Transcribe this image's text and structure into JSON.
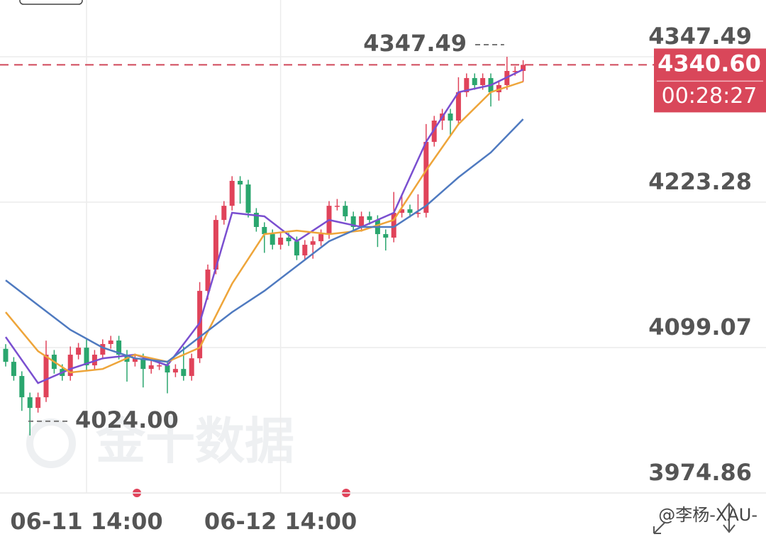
{
  "chart_data": {
    "type": "candlestick",
    "categories": [
      null,
      null,
      null,
      null,
      null,
      null,
      null,
      null,
      null,
      null,
      "06-11 14:00",
      null,
      null,
      null,
      null,
      null,
      null,
      null,
      null,
      null,
      null,
      null,
      null,
      null,
      null,
      null,
      null,
      null,
      null,
      null,
      null,
      null,
      null,
      null,
      "06-12 14:00",
      null,
      null,
      null,
      null,
      null,
      null,
      null,
      null,
      null,
      null,
      null,
      null,
      null,
      null,
      null,
      null,
      null,
      null,
      null,
      null,
      null,
      null,
      null,
      null,
      null,
      null,
      null,
      null,
      null,
      null
    ],
    "open": [
      4098.0,
      4086.9,
      4074.8,
      4056.6,
      4047.5,
      4056.6,
      4093.0,
      4080.8,
      4074.8,
      4093.0,
      4099.0,
      4083.9,
      4093.0,
      4102.1,
      4105.1,
      4093.0,
      4086.9,
      4089.9,
      4080.8,
      4083.9,
      4083.9,
      4077.8,
      4080.8,
      4074.8,
      4089.9,
      4147.5,
      4165.7,
      4208.1,
      4220.2,
      4241.5,
      4238.4,
      4214.2,
      4202.1,
      4196.0,
      4186.9,
      4193.0,
      4189.9,
      4177.8,
      4186.9,
      4189.9,
      4196.0,
      4220.2,
      4220.2,
      4211.2,
      4202.1,
      4211.2,
      4208.1,
      4196.0,
      4193.0,
      4214.2,
      4217.2,
      4214.2,
      4214.2,
      4274.8,
      4293.0,
      4299.0,
      4293.0,
      4317.2,
      4329.3,
      4323.3,
      4329.3,
      4317.2,
      4323.3,
      4335.4,
      4335.4
    ],
    "high": [
      4102.0,
      4090.9,
      4078.8,
      4060.6,
      4060.6,
      4105.0,
      4097.0,
      4084.8,
      4100.0,
      4103.0,
      4106.0,
      4097.0,
      4106.1,
      4109.1,
      4109.1,
      4097.0,
      4093.9,
      4093.9,
      4087.9,
      4087.9,
      4087.9,
      4084.8,
      4100.0,
      4093.9,
      4155.0,
      4170.0,
      4212.1,
      4224.2,
      4245.5,
      4245.5,
      4242.4,
      4218.2,
      4206.1,
      4200.0,
      4197.0,
      4197.0,
      4193.9,
      4190.9,
      4193.9,
      4200.0,
      4224.2,
      4226.0,
      4224.2,
      4215.2,
      4215.2,
      4215.2,
      4212.1,
      4200.0,
      4232.0,
      4230.0,
      4221.2,
      4230.0,
      4290.0,
      4297.0,
      4303.0,
      4303.0,
      4330.0,
      4333.3,
      4333.3,
      4333.3,
      4333.3,
      4327.3,
      4347.49,
      4339.4,
      4344.6
    ],
    "low": [
      4082.9,
      4070.8,
      4045.0,
      4024.0,
      4043.5,
      4052.6,
      4076.8,
      4070.8,
      4070.8,
      4089.0,
      4079.9,
      4079.9,
      4089.0,
      4098.1,
      4089.0,
      4070.0,
      4082.9,
      4065.0,
      4076.8,
      4079.9,
      4060.0,
      4073.8,
      4070.8,
      4070.8,
      4085.9,
      4140.0,
      4161.7,
      4204.1,
      4216.2,
      4222.0,
      4210.2,
      4198.1,
      4180.0,
      4182.9,
      4182.9,
      4185.9,
      4173.8,
      4173.8,
      4175.0,
      4185.9,
      4192.0,
      4216.2,
      4207.2,
      4198.1,
      4198.1,
      4204.1,
      4185.0,
      4182.0,
      4189.0,
      4210.2,
      4210.2,
      4210.2,
      4210.2,
      4270.8,
      4285.0,
      4280.0,
      4289.0,
      4313.2,
      4319.3,
      4319.3,
      4305.0,
      4310.0,
      4319.3,
      4331.4,
      4326.0
    ],
    "close": [
      4086.9,
      4074.8,
      4056.6,
      4047.5,
      4056.6,
      4093.0,
      4080.8,
      4074.8,
      4093.0,
      4099.0,
      4083.9,
      4093.0,
      4102.1,
      4105.1,
      4093.0,
      4086.9,
      4089.9,
      4080.8,
      4083.9,
      4083.9,
      4077.8,
      4080.8,
      4074.8,
      4089.9,
      4147.5,
      4165.7,
      4208.1,
      4220.2,
      4241.5,
      4238.4,
      4214.2,
      4202.1,
      4196.0,
      4186.9,
      4193.0,
      4189.9,
      4177.8,
      4186.9,
      4189.9,
      4196.0,
      4220.2,
      4220.2,
      4211.2,
      4202.1,
      4211.2,
      4208.1,
      4196.0,
      4193.0,
      4214.2,
      4217.2,
      4214.2,
      4214.2,
      4274.8,
      4293.0,
      4299.0,
      4293.0,
      4317.2,
      4329.3,
      4323.3,
      4329.3,
      4317.2,
      4323.3,
      4335.4,
      4335.4,
      4340.6
    ],
    "up_color": "#e0435a",
    "down_color": "#2aa66e",
    "lines": [
      {
        "color": "#7a4fd0",
        "x": [
          0,
          4,
          8,
          12,
          16,
          20,
          24,
          28,
          32,
          36,
          40,
          44,
          48,
          52,
          56,
          60,
          64
        ],
        "values": [
          4108.1,
          4068.7,
          4080.8,
          4089.9,
          4093.0,
          4083.9,
          4120.2,
          4214.2,
          4211.2,
          4189.9,
          4208.1,
          4202.1,
          4214.2,
          4274.8,
          4317.2,
          4323.3,
          4336.6
        ]
      },
      {
        "color": "#eea53a",
        "x": [
          0,
          4,
          8,
          12,
          16,
          20,
          24,
          28,
          32,
          36,
          40,
          44,
          48,
          52,
          56,
          60,
          64
        ],
        "values": [
          4129.3,
          4096.0,
          4077.8,
          4080.8,
          4093.0,
          4086.9,
          4099.0,
          4153.6,
          4196.0,
          4199.0,
          4196.0,
          4199.0,
          4208.1,
          4250.5,
          4289.9,
          4317.2,
          4326.3
        ]
      },
      {
        "color": "#4f7ac0",
        "x": [
          0,
          4,
          8,
          12,
          16,
          20,
          24,
          28,
          32,
          36,
          40,
          44,
          48,
          52,
          56,
          60,
          64
        ],
        "values": [
          4156.6,
          4135.4,
          4114.2,
          4099.0,
          4089.9,
          4086.9,
          4108.1,
          4129.3,
          4147.5,
          4168.7,
          4189.9,
          4202.1,
          4202.1,
          4220.2,
          4244.5,
          4265.7,
          4294.2
        ]
      }
    ],
    "ylim": [
      3974.86,
      4396.0
    ],
    "yticks": [
      3974.86,
      4099.07,
      4223.28,
      4347.49
    ],
    "grid": true,
    "max_marker": 4347.49,
    "min_marker": {
      "value": 4024.0,
      "label": "4024.00"
    },
    "last_price": {
      "value": 4340.6,
      "label": "4340.60"
    },
    "countdown": "00:28:27",
    "watermark": "金十数据",
    "credit": "@李杨-XAU-"
  }
}
